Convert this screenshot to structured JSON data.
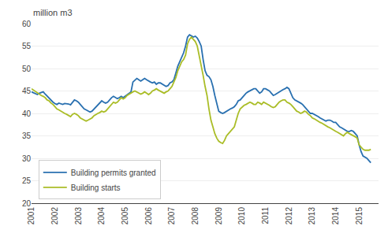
{
  "chart_data": {
    "type": "line",
    "ylabel": "million m3",
    "x": [
      2001.0,
      2001.083,
      2001.167,
      2001.25,
      2001.333,
      2001.417,
      2001.5,
      2001.583,
      2001.667,
      2001.75,
      2001.833,
      2001.917,
      2002.0,
      2002.083,
      2002.167,
      2002.25,
      2002.333,
      2002.417,
      2002.5,
      2002.583,
      2002.667,
      2002.75,
      2002.833,
      2002.917,
      2003.0,
      2003.083,
      2003.167,
      2003.25,
      2003.333,
      2003.417,
      2003.5,
      2003.583,
      2003.667,
      2003.75,
      2003.833,
      2003.917,
      2004.0,
      2004.083,
      2004.167,
      2004.25,
      2004.333,
      2004.417,
      2004.5,
      2004.583,
      2004.667,
      2004.75,
      2004.833,
      2004.917,
      2005.0,
      2005.083,
      2005.167,
      2005.25,
      2005.333,
      2005.417,
      2005.5,
      2005.583,
      2005.667,
      2005.75,
      2005.833,
      2005.917,
      2006.0,
      2006.083,
      2006.167,
      2006.25,
      2006.333,
      2006.417,
      2006.5,
      2006.583,
      2006.667,
      2006.75,
      2006.833,
      2006.917,
      2007.0,
      2007.083,
      2007.167,
      2007.25,
      2007.333,
      2007.417,
      2007.5,
      2007.583,
      2007.667,
      2007.75,
      2007.833,
      2007.917,
      2008.0,
      2008.083,
      2008.167,
      2008.25,
      2008.333,
      2008.417,
      2008.5,
      2008.583,
      2008.667,
      2008.75,
      2008.833,
      2008.917,
      2009.0,
      2009.083,
      2009.167,
      2009.25,
      2009.333,
      2009.417,
      2009.5,
      2009.583,
      2009.667,
      2009.75,
      2009.833,
      2009.917,
      2010.0,
      2010.083,
      2010.167,
      2010.25,
      2010.333,
      2010.417,
      2010.5,
      2010.583,
      2010.667,
      2010.75,
      2010.833,
      2010.917,
      2011.0,
      2011.083,
      2011.167,
      2011.25,
      2011.333,
      2011.417,
      2011.5,
      2011.583,
      2011.667,
      2011.75,
      2011.833,
      2011.917,
      2012.0,
      2012.083,
      2012.167,
      2012.25,
      2012.333,
      2012.417,
      2012.5,
      2012.583,
      2012.667,
      2012.75,
      2012.833,
      2012.917,
      2013.0,
      2013.083,
      2013.167,
      2013.25,
      2013.333,
      2013.417,
      2013.5,
      2013.583,
      2013.667,
      2013.75,
      2013.833,
      2013.917,
      2014.0,
      2014.083,
      2014.167,
      2014.25,
      2014.333,
      2014.417,
      2014.5,
      2014.583,
      2014.667,
      2014.75,
      2014.833,
      2014.917,
      2015.0,
      2015.083,
      2015.167,
      2015.25,
      2015.333,
      2015.417,
      2015.5
    ],
    "series": [
      {
        "name": "Building permits granted",
        "color": "#2970B0",
        "values": [
          44.8,
          44.6,
          44.4,
          44.2,
          44.5,
          44.7,
          44.8,
          44.3,
          43.8,
          43.5,
          43.0,
          42.5,
          42.2,
          42.0,
          42.3,
          42.1,
          42.0,
          42.2,
          42.2,
          42.1,
          41.9,
          42.5,
          43.0,
          42.8,
          42.5,
          42.0,
          41.5,
          41.0,
          40.8,
          40.5,
          40.3,
          40.5,
          41.0,
          41.5,
          42.0,
          42.5,
          42.8,
          42.5,
          42.3,
          42.5,
          43.0,
          43.5,
          43.8,
          43.5,
          43.3,
          43.5,
          43.8,
          43.5,
          43.8,
          44.2,
          44.5,
          44.8,
          47.0,
          47.5,
          47.8,
          47.5,
          47.2,
          47.5,
          47.8,
          47.5,
          47.2,
          47.0,
          46.8,
          47.0,
          46.5,
          46.8,
          46.8,
          46.5,
          46.2,
          46.0,
          46.2,
          46.8,
          47.0,
          47.5,
          49.0,
          50.5,
          51.5,
          52.5,
          53.5,
          55.0,
          57.0,
          57.5,
          57.3,
          57.0,
          57.2,
          56.8,
          56.0,
          55.0,
          52.0,
          49.5,
          48.5,
          48.2,
          47.5,
          46.0,
          44.0,
          42.0,
          40.5,
          40.2,
          40.0,
          40.2,
          40.5,
          40.8,
          41.0,
          41.2,
          41.5,
          42.0,
          42.8,
          43.0,
          43.5,
          44.0,
          44.5,
          44.8,
          45.0,
          45.2,
          45.5,
          45.5,
          45.0,
          44.5,
          44.8,
          45.5,
          45.5,
          45.3,
          45.0,
          44.5,
          44.0,
          44.2,
          44.5,
          44.8,
          45.0,
          45.3,
          45.5,
          45.8,
          45.5,
          44.5,
          43.5,
          43.0,
          42.8,
          42.5,
          42.3,
          42.0,
          41.5,
          41.0,
          40.5,
          40.0,
          40.0,
          39.8,
          39.5,
          39.3,
          39.0,
          38.8,
          38.5,
          38.3,
          38.5,
          38.5,
          38.3,
          38.0,
          38.0,
          37.5,
          37.0,
          36.8,
          36.5,
          36.3,
          36.0,
          36.0,
          36.2,
          36.0,
          35.5,
          35.0,
          33.0,
          31.5,
          30.5,
          30.2,
          30.0,
          29.5,
          29.0
        ]
      },
      {
        "name": "Building starts",
        "color": "#AABD27",
        "values": [
          45.5,
          45.2,
          44.8,
          44.5,
          44.3,
          44.0,
          43.8,
          43.5,
          43.0,
          42.8,
          42.3,
          42.0,
          41.5,
          41.0,
          40.8,
          40.5,
          40.2,
          40.0,
          39.8,
          39.5,
          39.3,
          39.8,
          40.0,
          39.8,
          39.5,
          39.0,
          38.8,
          38.5,
          38.3,
          38.5,
          38.8,
          39.0,
          39.5,
          39.8,
          40.0,
          40.2,
          40.5,
          40.3,
          40.5,
          41.0,
          41.5,
          42.0,
          42.5,
          42.3,
          42.5,
          43.0,
          43.5,
          43.2,
          43.5,
          44.0,
          44.3,
          44.5,
          44.8,
          45.0,
          44.8,
          44.5,
          44.3,
          44.5,
          44.8,
          44.5,
          44.2,
          44.5,
          45.0,
          45.2,
          45.5,
          45.2,
          45.0,
          44.8,
          44.5,
          44.8,
          45.0,
          45.5,
          46.0,
          47.0,
          48.0,
          49.5,
          50.5,
          51.5,
          52.0,
          53.0,
          55.5,
          56.5,
          57.0,
          56.5,
          56.0,
          55.0,
          53.0,
          51.0,
          48.5,
          46.0,
          44.0,
          41.0,
          38.5,
          37.0,
          35.5,
          34.5,
          33.8,
          33.5,
          33.3,
          34.0,
          35.0,
          35.5,
          36.0,
          36.5,
          37.0,
          38.5,
          40.0,
          41.0,
          41.5,
          41.8,
          42.0,
          42.3,
          42.5,
          42.3,
          42.0,
          42.0,
          42.5,
          42.3,
          42.0,
          42.5,
          42.3,
          42.0,
          41.8,
          41.5,
          41.3,
          41.5,
          42.0,
          42.5,
          42.8,
          43.0,
          43.0,
          42.5,
          42.3,
          42.0,
          41.5,
          41.0,
          40.5,
          40.3,
          40.0,
          40.2,
          40.5,
          40.3,
          39.8,
          39.5,
          39.0,
          38.8,
          38.5,
          38.3,
          38.0,
          37.8,
          37.5,
          37.2,
          37.0,
          36.8,
          36.5,
          36.3,
          36.0,
          35.8,
          35.5,
          35.3,
          35.0,
          35.5,
          35.8,
          35.5,
          35.3,
          35.0,
          34.8,
          34.5,
          33.0,
          32.5,
          32.0,
          31.8,
          31.8,
          31.8,
          32.0
        ]
      }
    ],
    "xlim": [
      2001.0,
      2015.83
    ],
    "xticks": [
      2001,
      2002,
      2003,
      2004,
      2005,
      2006,
      2007,
      2008,
      2009,
      2010,
      2011,
      2012,
      2013,
      2014,
      2015
    ],
    "ylim": [
      20,
      60
    ],
    "yticks": [
      20,
      25,
      30,
      35,
      40,
      45,
      50,
      55,
      60
    ],
    "grid": true,
    "legend": "lower left"
  }
}
